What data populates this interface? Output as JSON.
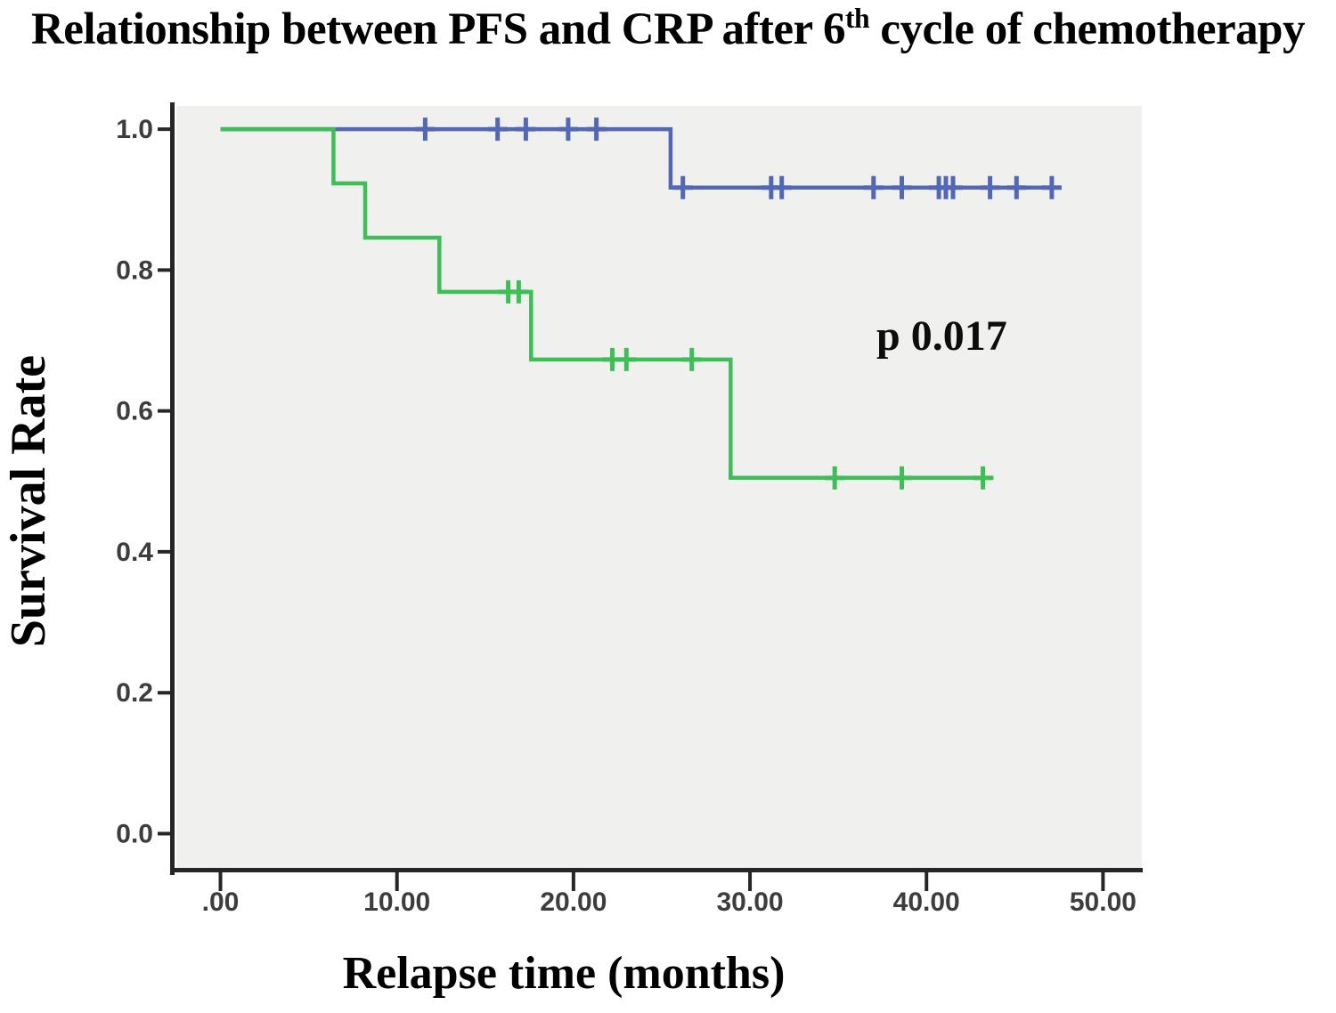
{
  "chart_data": {
    "type": "line",
    "subtype": "kaplan-meier-step-curves",
    "title_prefix": "Relationship between PFS and CRP after 6",
    "title_sup": "th",
    "title_suffix": " cycle of chemotherapy",
    "xlabel": "Relapse time (months)",
    "ylabel": "Survival Rate",
    "annotation": "p 0.017",
    "grid": false,
    "legend": "none",
    "xlim": [
      -2.6,
      52.2
    ],
    "ylim": [
      -0.055,
      1.033
    ],
    "plot_bg_color": "#f0f0ef",
    "axis_color": "#262626",
    "tick_label_color": "#3d3d3d",
    "x_ticks": [
      {
        "value": 0,
        "label": ".00"
      },
      {
        "value": 10,
        "label": "10.00"
      },
      {
        "value": 20,
        "label": "20.00"
      },
      {
        "value": 30,
        "label": "30.00"
      },
      {
        "value": 40,
        "label": "40.00"
      },
      {
        "value": 50,
        "label": "50.00"
      }
    ],
    "y_ticks": [
      {
        "value": 0.0,
        "label": "0.0"
      },
      {
        "value": 0.2,
        "label": "0.2"
      },
      {
        "value": 0.4,
        "label": "0.4"
      },
      {
        "value": 0.6,
        "label": "0.6"
      },
      {
        "value": 0.8,
        "label": "0.8"
      },
      {
        "value": 1.0,
        "label": "1.0"
      }
    ],
    "series": [
      {
        "id": "blue-upper-curve",
        "color": "#5268b5",
        "steps": [
          [
            0,
            1.0
          ],
          [
            25.5,
            1.0
          ],
          [
            25.5,
            0.917
          ],
          [
            47.4,
            0.917
          ]
        ],
        "censor_marks": [
          [
            11.6,
            1.0
          ],
          [
            15.7,
            1.0
          ],
          [
            17.3,
            1.0
          ],
          [
            19.7,
            1.0
          ],
          [
            21.3,
            1.0
          ],
          [
            26.2,
            0.917
          ],
          [
            31.2,
            0.917
          ],
          [
            31.8,
            0.917
          ],
          [
            37.0,
            0.917
          ],
          [
            38.6,
            0.917
          ],
          [
            40.7,
            0.917
          ],
          [
            41.1,
            0.917
          ],
          [
            41.5,
            0.917
          ],
          [
            43.6,
            0.917
          ],
          [
            45.1,
            0.917
          ],
          [
            47.1,
            0.917
          ]
        ]
      },
      {
        "id": "green-lower-curve",
        "color": "#3fbe58",
        "steps": [
          [
            0,
            1.0
          ],
          [
            6.4,
            1.0
          ],
          [
            6.4,
            0.923
          ],
          [
            8.2,
            0.923
          ],
          [
            8.2,
            0.846
          ],
          [
            12.4,
            0.846
          ],
          [
            12.4,
            0.769
          ],
          [
            17.6,
            0.769
          ],
          [
            17.6,
            0.673
          ],
          [
            28.9,
            0.673
          ],
          [
            28.9,
            0.505
          ],
          [
            43.8,
            0.505
          ]
        ],
        "censor_marks": [
          [
            16.3,
            0.769
          ],
          [
            16.9,
            0.769
          ],
          [
            22.2,
            0.673
          ],
          [
            23.0,
            0.673
          ],
          [
            26.7,
            0.673
          ],
          [
            34.8,
            0.505
          ],
          [
            38.6,
            0.505
          ],
          [
            43.2,
            0.505
          ]
        ]
      }
    ]
  }
}
